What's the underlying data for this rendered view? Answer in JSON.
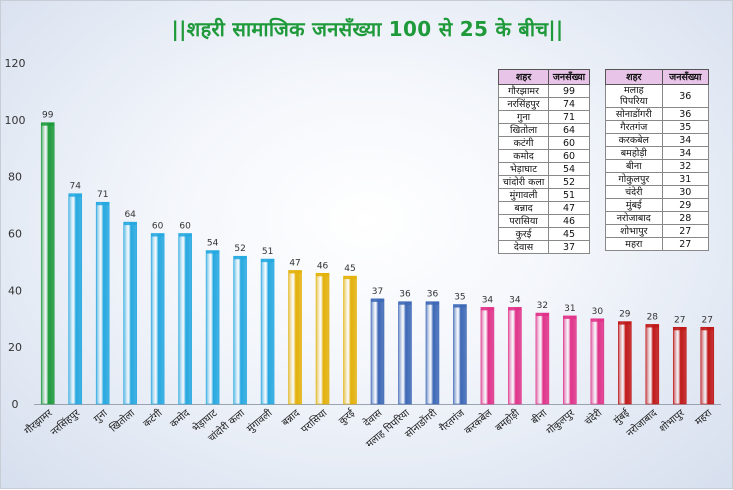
{
  "title": "||शहरी सामाजिक जनसँख्या 100 से 25 के बीच||",
  "chart_data": {
    "type": "bar",
    "ylim": [
      0,
      120
    ],
    "yticks": [
      0,
      20,
      40,
      60,
      80,
      100,
      120
    ],
    "grid": false,
    "categories": [
      "गौरझामर",
      "नरसिंहपुर",
      "गुना",
      "खितोला",
      "कटंगी",
      "कमोद",
      "भेड़ाघाट",
      "चांदोरी कला",
      "मुंगावली",
      "बन्नाद",
      "परासिया",
      "कुरई",
      "देवास",
      "मलाह पिपरिया",
      "सोनाडोंगरी",
      "गैरतगंज",
      "करकबेल",
      "बमहोड़ी",
      "बीना",
      "गोकुलपुर",
      "चंदेरी",
      "मुंबई",
      "नरोजाबाद",
      "शोभापुर",
      "महरा"
    ],
    "values": [
      99,
      74,
      71,
      64,
      60,
      60,
      54,
      52,
      51,
      47,
      46,
      45,
      37,
      36,
      36,
      35,
      34,
      34,
      32,
      31,
      30,
      29,
      28,
      27,
      27
    ],
    "bar_colors": [
      "#1e9a3c",
      "#26a8e0",
      "#26a8e0",
      "#26a8e0",
      "#26a8e0",
      "#26a8e0",
      "#26a8e0",
      "#26a8e0",
      "#26a8e0",
      "#e3b10a",
      "#e3b10a",
      "#e3b10a",
      "#3d68b6",
      "#3d68b6",
      "#3d68b6",
      "#3d68b6",
      "#e0338a",
      "#e0338a",
      "#e0338a",
      "#e0338a",
      "#e0338a",
      "#c01818",
      "#c01818",
      "#c01818",
      "#c01818"
    ]
  },
  "legend_table": {
    "headers": [
      "शहर",
      "जनसँख्या"
    ],
    "left": [
      [
        "गौरझामर",
        "99"
      ],
      [
        "नरसिंहपुर",
        "74"
      ],
      [
        "गुना",
        "71"
      ],
      [
        "खितोला",
        "64"
      ],
      [
        "कटंगी",
        "60"
      ],
      [
        "कमोद",
        "60"
      ],
      [
        "भेड़ाघाट",
        "54"
      ],
      [
        "चांदोरी कला",
        "52"
      ],
      [
        "मुंगावली",
        "51"
      ],
      [
        "बन्नाद",
        "47"
      ],
      [
        "परासिया",
        "46"
      ],
      [
        "कुरई",
        "45"
      ],
      [
        "देवास",
        "37"
      ]
    ],
    "right": [
      [
        "मलाह पिपरिया",
        "36"
      ],
      [
        "सोनाडोंगरी",
        "36"
      ],
      [
        "गैरतगंज",
        "35"
      ],
      [
        "करकबेल",
        "34"
      ],
      [
        "बमहोड़ी",
        "34"
      ],
      [
        "बीना",
        "32"
      ],
      [
        "गोकुलपुर",
        "31"
      ],
      [
        "चंदेरी",
        "30"
      ],
      [
        "मुंबई",
        "29"
      ],
      [
        "नरोजाबाद",
        "28"
      ],
      [
        "शोभापुर",
        "27"
      ],
      [
        "महरा",
        "27"
      ]
    ]
  }
}
